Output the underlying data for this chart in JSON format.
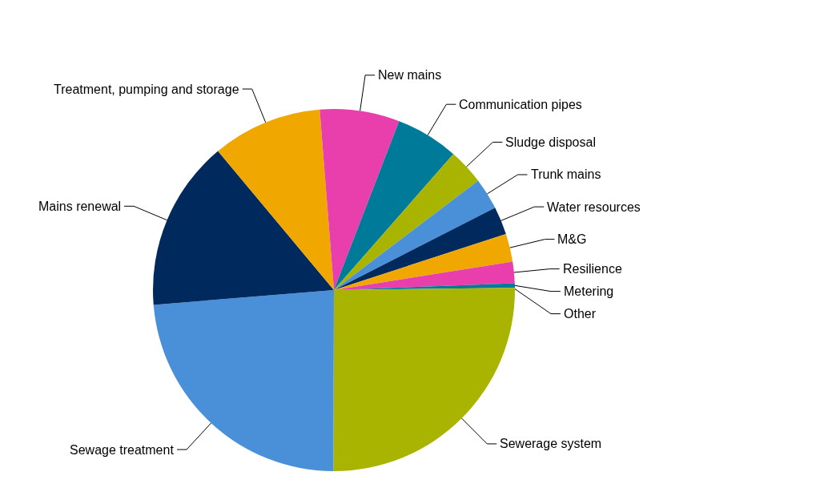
{
  "chart_data": {
    "type": "pie",
    "categories": [
      "Sewerage system",
      "Sewage treatment",
      "Mains renewal",
      "Treatment, pumping and storage",
      "New mains",
      "Communication pipes",
      "Sludge disposal",
      "Trunk mains",
      "Water resources",
      "M&G",
      "Resilience",
      "Metering",
      "Other"
    ],
    "values": [
      25,
      23.6,
      15.2,
      9.8,
      7.1,
      5.6,
      3.2,
      2.8,
      2.5,
      2.5,
      1.9,
      0.4,
      0.2
    ],
    "colors": [
      "#a9b400",
      "#4a90d9",
      "#002a5e",
      "#f0a800",
      "#e83fad",
      "#007a99",
      "#a9b400",
      "#4a90d9",
      "#002a5e",
      "#f0a800",
      "#e83fad",
      "#007a99",
      "#a9b400"
    ],
    "legend": false
  }
}
